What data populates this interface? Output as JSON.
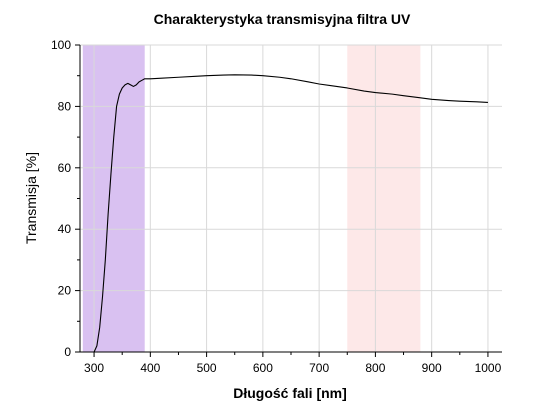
{
  "chart_data": {
    "type": "line",
    "title": "Charakterystyka transmisyjna filtra UV",
    "xlabel": "Długość fali [nm]",
    "ylabel": "Transmisja [%]",
    "xlim": [
      275,
      1025
    ],
    "ylim": [
      0,
      100
    ],
    "xticks": [
      300,
      400,
      500,
      600,
      700,
      800,
      900,
      1000
    ],
    "xtick_labels": [
      "300",
      "400",
      "500",
      "600",
      "700",
      "800",
      "900",
      "1000"
    ],
    "yticks": [
      0,
      20,
      40,
      60,
      80,
      100
    ],
    "ytick_labels": [
      "0",
      "20",
      "40",
      "60",
      "80",
      "100"
    ],
    "grid": true,
    "legend": "none",
    "bands": [
      {
        "x0": 280,
        "x1": 390,
        "color": "#d2b6ee",
        "opacity": 0.85
      },
      {
        "x0": 750,
        "x1": 880,
        "color": "#fde4e4",
        "opacity": 0.85
      }
    ],
    "series": [
      {
        "color": "#000000",
        "x": [
          300,
          305,
          310,
          315,
          320,
          325,
          330,
          335,
          340,
          345,
          350,
          355,
          360,
          365,
          370,
          375,
          380,
          385,
          390,
          400,
          420,
          450,
          480,
          500,
          530,
          550,
          580,
          600,
          630,
          650,
          680,
          700,
          720,
          750,
          780,
          800,
          830,
          850,
          880,
          900,
          930,
          950,
          980,
          1000
        ],
        "y": [
          0,
          2,
          8,
          18,
          30,
          45,
          58,
          70,
          80,
          84,
          86,
          87,
          87.5,
          87,
          86.5,
          87,
          88,
          88.5,
          89,
          89,
          89.2,
          89.5,
          89.8,
          90,
          90.2,
          90.3,
          90.2,
          90,
          89.5,
          89,
          88,
          87.3,
          86.8,
          86,
          85,
          84.5,
          84,
          83.5,
          82.8,
          82.3,
          81.9,
          81.7,
          81.5,
          81.3
        ]
      }
    ]
  }
}
